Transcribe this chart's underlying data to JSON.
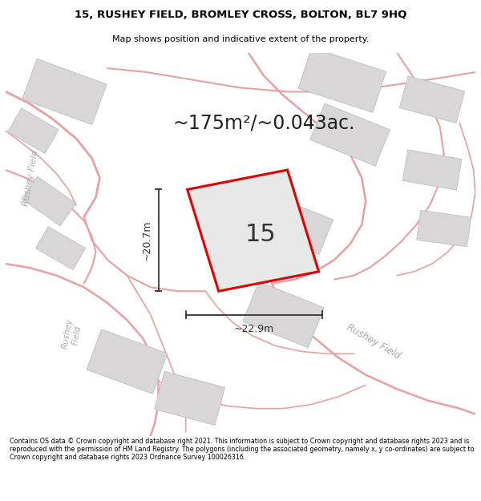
{
  "title_line1": "15, RUSHEY FIELD, BROMLEY CROSS, BOLTON, BL7 9HQ",
  "title_line2": "Map shows position and indicative extent of the property.",
  "area_text": "~175m²/~0.043ac.",
  "label_number": "15",
  "dim_height": "~20.7m",
  "dim_width": "~22.9m",
  "footer_text": "Contains OS data © Crown copyright and database right 2021. This information is subject to Crown copyright and database rights 2023 and is reproduced with the permission of HM Land Registry. The polygons (including the associated geometry, namely x, y co-ordinates) are subject to Crown copyright and database rights 2023 Ordnance Survey 100026316.",
  "bg_color": "#ffffff",
  "map_bg": "#eeecec",
  "plot_color": "#dd0000",
  "plot_fill": "#e8e8e8",
  "building_fill": "#d8d6d6",
  "building_edge": "#c0bebe",
  "road_color": "#e8a0a0",
  "street_label_color": "#aaaaaa",
  "dim_color": "#333333",
  "text_color": "#222222"
}
